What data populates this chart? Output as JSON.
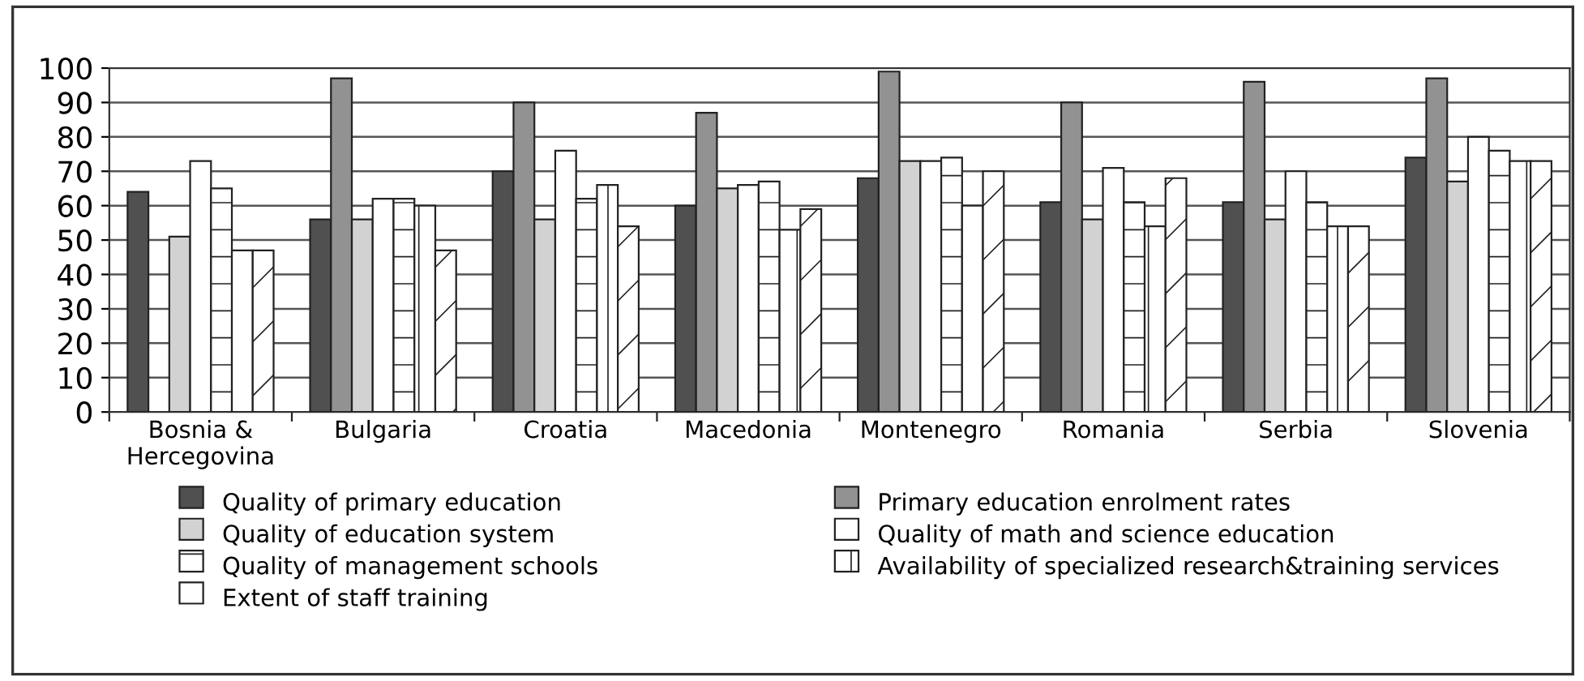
{
  "chart_data": {
    "type": "bar",
    "categories": [
      "Bosnia &\nHercegovina",
      "Bulgaria",
      "Croatia",
      "Macedonia",
      "Montenegro",
      "Romania",
      "Serbia",
      "Slovenia"
    ],
    "series": [
      {
        "name": "Quality of primary education",
        "color": "#505050",
        "values": [
          64,
          56,
          70,
          60,
          68,
          61,
          61,
          74
        ]
      },
      {
        "name": "Primary education enrolment rates",
        "color": "#929292",
        "values": [
          null,
          97,
          90,
          87,
          99,
          90,
          96,
          97
        ]
      },
      {
        "name": "Quality of education system",
        "color": "#d2d2d2",
        "values": [
          51,
          56,
          56,
          65,
          73,
          56,
          56,
          67
        ]
      },
      {
        "name": "Quality of math and science education",
        "color": "#ffffff",
        "values": [
          73,
          62,
          76,
          66,
          73,
          71,
          70,
          80
        ]
      },
      {
        "name": "Quality of management schools",
        "color": "#ffffff",
        "values": [
          65,
          62,
          62,
          67,
          74,
          61,
          61,
          76
        ]
      },
      {
        "name": "Availability of specialized research&training services",
        "color": "#ffffff",
        "values": [
          47,
          60,
          66,
          53,
          60,
          54,
          54,
          73
        ]
      },
      {
        "name": "Extent of staff training",
        "color": "#ffffff",
        "values": [
          47,
          47,
          54,
          59,
          70,
          68,
          54,
          73
        ]
      }
    ],
    "ylim": [
      0,
      100
    ],
    "yticks": [
      0,
      10,
      20,
      30,
      40,
      50,
      60,
      70,
      80,
      90,
      100
    ],
    "grid": "y",
    "legend": "bottom"
  }
}
